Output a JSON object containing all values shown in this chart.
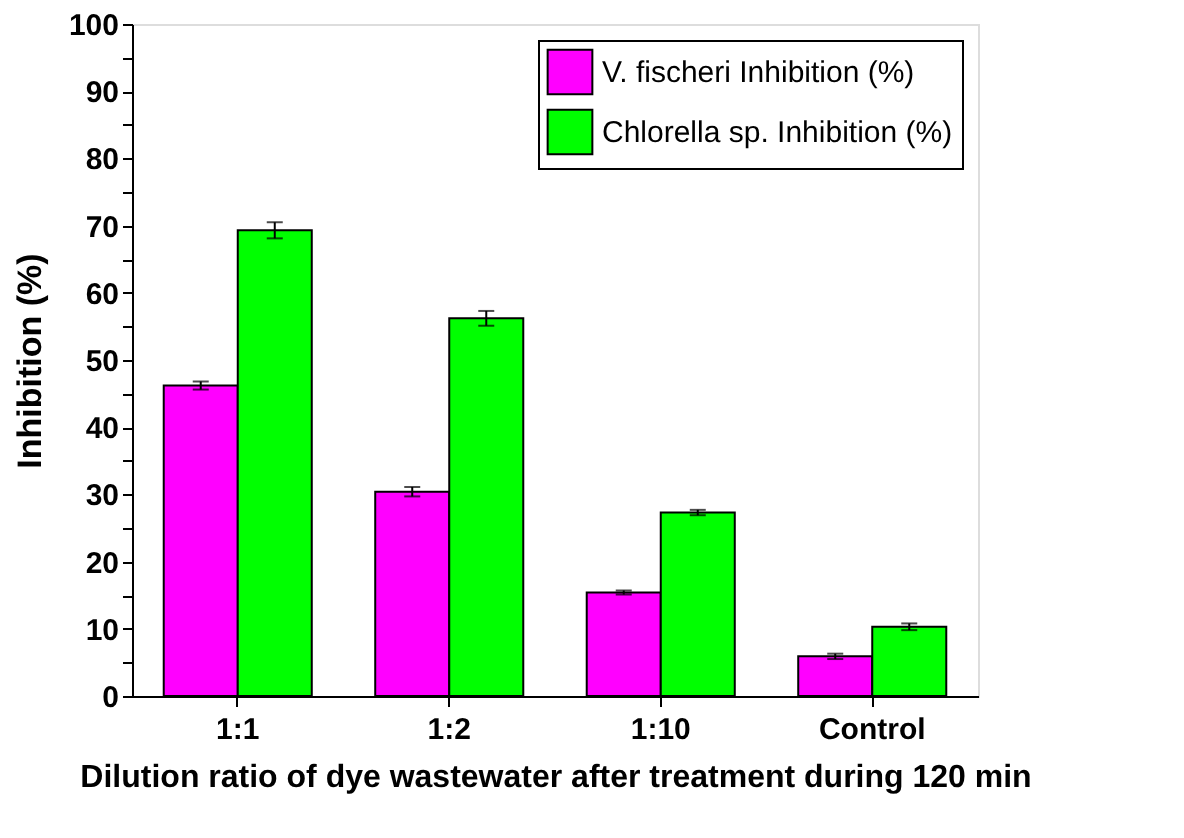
{
  "chart_data": {
    "type": "bar",
    "categories": [
      "1:1",
      "1:2",
      "1:10",
      "Control"
    ],
    "xlabel": "Dilution ratio of dye wastewater after treatment during 120 min",
    "ylabel": "Inhibition (%)",
    "series": [
      {
        "name": "V. fischeri Inhibition (%)",
        "color": "#ff00ff",
        "values": [
          46.2,
          30.4,
          15.4,
          5.9
        ],
        "errors": [
          0.6,
          0.7,
          0.3,
          0.4
        ]
      },
      {
        "name": "Chlorella sp. Inhibition (%)",
        "color": "#00ff00",
        "values": [
          69.3,
          56.2,
          27.3,
          10.3
        ],
        "errors": [
          1.2,
          1.1,
          0.4,
          0.5
        ]
      }
    ],
    "ylim": [
      0,
      100
    ],
    "yticks": [
      0,
      {
        "value": 5,
        "label": null
      },
      10,
      {
        "value": 15,
        "label": null
      },
      20,
      {
        "value": 25,
        "label": null
      },
      30,
      {
        "value": 35,
        "label": null
      },
      40,
      {
        "value": 45,
        "label": null
      },
      50,
      {
        "value": 55,
        "label": null
      },
      60,
      {
        "value": 65,
        "label": null
      },
      70,
      {
        "value": 75,
        "label": null
      },
      80,
      {
        "value": 85,
        "label": null
      },
      90,
      {
        "value": 95,
        "label": null
      },
      100
    ],
    "legend": "top right",
    "grid": false
  }
}
